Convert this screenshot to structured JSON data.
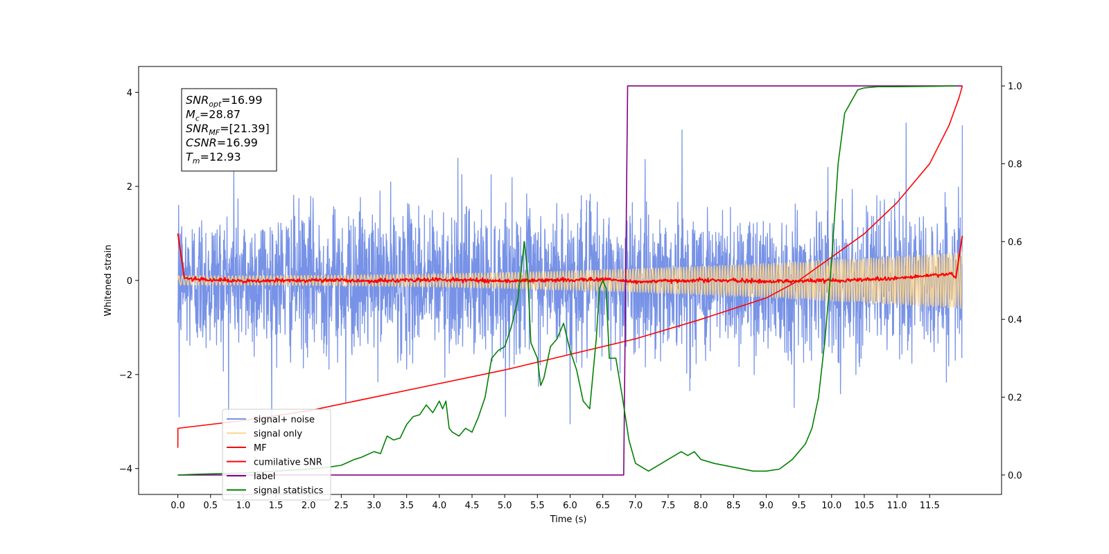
{
  "chart_data": {
    "type": "line",
    "title": "",
    "xlabel": "Time (s)",
    "ylabel": "Whitened strain",
    "ylabel_right": "",
    "xlim": [
      -0.6,
      12.6
    ],
    "ylim": [
      -4.55,
      4.55
    ],
    "ylim_right": [
      -0.05,
      1.05
    ],
    "grid": false,
    "legend_position": "lower-left",
    "xticks": [
      "0.0",
      "0.5",
      "1.0",
      "1.5",
      "2.0",
      "2.5",
      "3.0",
      "3.5",
      "4.0",
      "4.5",
      "5.0",
      "5.5",
      "6.0",
      "6.5",
      "7.0",
      "7.5",
      "8.0",
      "8.5",
      "9.0",
      "9.5",
      "10.0",
      "10.5",
      "11.0",
      "11.5"
    ],
    "xtick_values": [
      0,
      0.5,
      1,
      1.5,
      2,
      2.5,
      3,
      3.5,
      4,
      4.5,
      5,
      5.5,
      6,
      6.5,
      7,
      7.5,
      8,
      8.5,
      9,
      9.5,
      10,
      10.5,
      11,
      11.5
    ],
    "yticks_left": [
      "−4",
      "−2",
      "0",
      "2",
      "4"
    ],
    "ytick_values_left": [
      -4,
      -2,
      0,
      2,
      4
    ],
    "yticks_right": [
      "0.0",
      "0.2",
      "0.4",
      "0.6",
      "0.8",
      "1.0"
    ],
    "ytick_values_right": [
      0,
      0.2,
      0.4,
      0.6,
      0.8,
      1.0
    ],
    "annotation": {
      "lines": [
        {
          "base": "SNR",
          "sub": "opt",
          "value": "=16.99"
        },
        {
          "base": "M",
          "sub": "c",
          "value": "=28.87"
        },
        {
          "base": "SNR",
          "sub": "MF",
          "value": "=[21.39]"
        },
        {
          "base": "CSNR",
          "sub": "",
          "value": "=16.99"
        },
        {
          "base": "T",
          "sub": "m",
          "value": "=12.93"
        }
      ]
    },
    "series": [
      {
        "name": "signal+ noise",
        "color": "#7792e6",
        "axis": "left",
        "kind": "noise",
        "x_range": [
          0,
          12
        ],
        "amplitude_std": 0.75,
        "peak_values": [
          2.4,
          -2.6,
          2.6,
          -3.05,
          3.2,
          -2.7,
          3.35
        ]
      },
      {
        "name": "signal only",
        "color": "#fbd38a",
        "axis": "left",
        "kind": "chirp",
        "x_range": [
          0,
          12
        ],
        "amplitude_start": 0.1,
        "amplitude_end": 0.6
      },
      {
        "name": "MF",
        "color": "#ff0000",
        "axis": "left",
        "kind": "mf",
        "x": [
          0,
          0.1,
          0.5,
          1,
          2,
          3,
          4,
          5,
          6,
          6.5,
          7,
          8,
          9,
          10,
          10.5,
          11,
          11.5,
          11.8,
          11.9,
          12
        ],
        "y": [
          1,
          0.05,
          0.02,
          -0.02,
          0.01,
          -0.01,
          0.02,
          -0.01,
          0.01,
          0.03,
          -0.03,
          0.01,
          -0.02,
          0.0,
          0.02,
          0.05,
          0.1,
          0.15,
          0.05,
          0.95
        ]
      },
      {
        "name": "cumilative SNR",
        "color": "#ff0000",
        "axis": "right",
        "x": [
          0,
          0.001,
          1,
          2,
          3,
          4,
          5,
          6,
          7,
          8,
          9,
          9.5,
          10,
          10.5,
          11,
          11.5,
          11.8,
          11.95,
          12
        ],
        "y": [
          0.07,
          0.12,
          0.14,
          0.165,
          0.2,
          0.235,
          0.27,
          0.31,
          0.35,
          0.4,
          0.455,
          0.5,
          0.56,
          0.62,
          0.7,
          0.8,
          0.9,
          0.97,
          1.0
        ]
      },
      {
        "name": "label",
        "color": "#800080",
        "axis": "right",
        "x": [
          0,
          6.82,
          6.88,
          12
        ],
        "y": [
          0,
          0,
          1,
          1
        ]
      },
      {
        "name": "signal statistics",
        "color": "#008000",
        "axis": "right",
        "x": [
          0,
          0.3,
          1,
          1.5,
          2,
          2.3,
          2.5,
          2.7,
          2.8,
          3,
          3.1,
          3.2,
          3.3,
          3.4,
          3.5,
          3.6,
          3.7,
          3.8,
          3.9,
          4,
          4.05,
          4.1,
          4.15,
          4.2,
          4.3,
          4.4,
          4.5,
          4.6,
          4.7,
          4.8,
          4.9,
          5.0,
          5.1,
          5.2,
          5.3,
          5.35,
          5.4,
          5.5,
          5.55,
          5.6,
          5.7,
          5.8,
          5.9,
          6.0,
          6.1,
          6.2,
          6.3,
          6.4,
          6.45,
          6.5,
          6.55,
          6.6,
          6.7,
          6.8,
          6.9,
          7.0,
          7.1,
          7.2,
          7.3,
          7.4,
          7.5,
          7.6,
          7.7,
          7.8,
          7.9,
          8.0,
          8.2,
          8.5,
          8.8,
          9.0,
          9.2,
          9.4,
          9.5,
          9.6,
          9.7,
          9.8,
          9.9,
          10.0,
          10.1,
          10.2,
          10.3,
          10.4,
          10.5,
          10.7,
          11.0,
          11.5,
          11.9
        ],
        "y": [
          0.0,
          0.002,
          0.005,
          0.01,
          0.015,
          0.02,
          0.025,
          0.04,
          0.045,
          0.06,
          0.055,
          0.1,
          0.09,
          0.095,
          0.13,
          0.15,
          0.155,
          0.18,
          0.16,
          0.19,
          0.17,
          0.19,
          0.12,
          0.11,
          0.1,
          0.12,
          0.11,
          0.15,
          0.2,
          0.3,
          0.32,
          0.33,
          0.38,
          0.45,
          0.6,
          0.52,
          0.34,
          0.3,
          0.23,
          0.25,
          0.33,
          0.35,
          0.39,
          0.32,
          0.27,
          0.19,
          0.17,
          0.35,
          0.48,
          0.5,
          0.48,
          0.3,
          0.3,
          0.2,
          0.09,
          0.03,
          0.02,
          0.01,
          0.02,
          0.03,
          0.04,
          0.05,
          0.06,
          0.05,
          0.06,
          0.04,
          0.03,
          0.02,
          0.01,
          0.01,
          0.015,
          0.04,
          0.06,
          0.08,
          0.12,
          0.2,
          0.35,
          0.55,
          0.8,
          0.93,
          0.96,
          0.99,
          0.995,
          0.998,
          0.998,
          0.999,
          1.0
        ]
      }
    ]
  }
}
